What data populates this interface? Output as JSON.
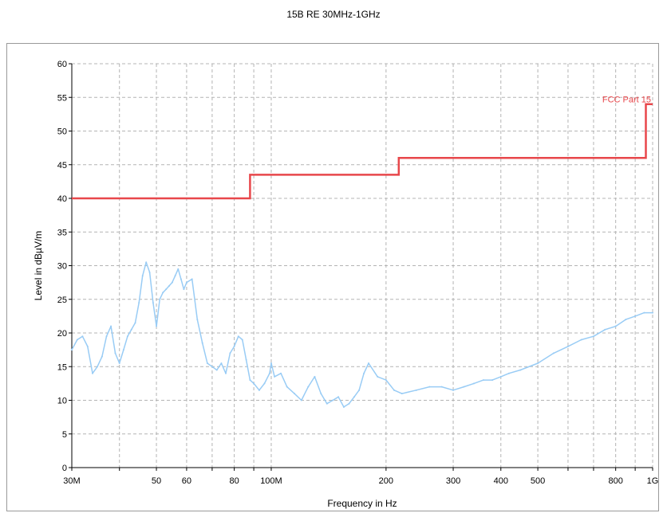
{
  "chart_title": "15B RE 30MHz-1GHz",
  "chart_data": {
    "type": "line",
    "title": "15B RE 30MHz-1GHz",
    "xlabel": "Frequency in Hz",
    "ylabel": "Level in dBµV/m",
    "x_scale": "log",
    "xlim": [
      30000000,
      1000000000
    ],
    "ylim": [
      0,
      60
    ],
    "grid": true,
    "x_ticks": [
      {
        "value": 30000000,
        "label": "30M"
      },
      {
        "value": 50000000,
        "label": "50"
      },
      {
        "value": 60000000,
        "label": "60"
      },
      {
        "value": 80000000,
        "label": "80"
      },
      {
        "value": 100000000,
        "label": "100M"
      },
      {
        "value": 200000000,
        "label": "200"
      },
      {
        "value": 300000000,
        "label": "300"
      },
      {
        "value": 400000000,
        "label": "400"
      },
      {
        "value": 500000000,
        "label": "500"
      },
      {
        "value": 800000000,
        "label": "800"
      },
      {
        "value": 1000000000,
        "label": "1G"
      }
    ],
    "x_grid_values": [
      30000000,
      40000000,
      50000000,
      60000000,
      70000000,
      80000000,
      90000000,
      100000000,
      200000000,
      300000000,
      400000000,
      500000000,
      600000000,
      700000000,
      800000000,
      900000000,
      1000000000
    ],
    "y_ticks": [
      0,
      5,
      10,
      15,
      20,
      25,
      30,
      35,
      40,
      45,
      50,
      55,
      60
    ],
    "series": [
      {
        "name": "FCC Part 15",
        "color": "#e8474b",
        "x": [
          30000000,
          88000000,
          88000000,
          216000000,
          216000000,
          960000000,
          960000000,
          1000000000
        ],
        "y": [
          40.0,
          40.0,
          43.5,
          43.5,
          46.0,
          46.0,
          54.0,
          54.0
        ]
      },
      {
        "color": "#99ccf5",
        "x": [
          30000000,
          31000000,
          32000000,
          33000000,
          34000000,
          35000000,
          36000000,
          37000000,
          38000000,
          39000000,
          40000000,
          41000000,
          42000000,
          43000000,
          44000000,
          45000000,
          46000000,
          47000000,
          48000000,
          49000000,
          50000000,
          51000000,
          52000000,
          53000000,
          54000000,
          55000000,
          56000000,
          57000000,
          58000000,
          59000000,
          60000000,
          62000000,
          64000000,
          66000000,
          68000000,
          70000000,
          72000000,
          74000000,
          76000000,
          78000000,
          80000000,
          82000000,
          84000000,
          86000000,
          88000000,
          90000000,
          93000000,
          96000000,
          99000000,
          100000000,
          102000000,
          106000000,
          110000000,
          115000000,
          120000000,
          125000000,
          130000000,
          135000000,
          140000000,
          145000000,
          150000000,
          155000000,
          160000000,
          165000000,
          170000000,
          175000000,
          180000000,
          190000000,
          200000000,
          210000000,
          220000000,
          240000000,
          260000000,
          280000000,
          300000000,
          320000000,
          340000000,
          360000000,
          380000000,
          400000000,
          420000000,
          450000000,
          500000000,
          550000000,
          600000000,
          650000000,
          700000000,
          750000000,
          800000000,
          850000000,
          900000000,
          950000000,
          1000000000
        ],
        "y": [
          17.5,
          19.0,
          19.5,
          18.0,
          14.0,
          15.0,
          16.5,
          19.5,
          21.0,
          17.0,
          15.5,
          17.5,
          19.5,
          20.5,
          21.5,
          24.5,
          28.5,
          30.5,
          29.0,
          24.5,
          21.0,
          25.0,
          26.0,
          26.5,
          27.0,
          27.5,
          28.5,
          29.5,
          28.0,
          26.5,
          27.5,
          28.0,
          22.0,
          18.5,
          15.5,
          15.0,
          14.5,
          15.5,
          14.0,
          17.0,
          18.0,
          19.5,
          19.0,
          16.0,
          13.0,
          12.5,
          11.5,
          12.5,
          14.0,
          15.5,
          13.5,
          14.0,
          12.0,
          11.0,
          10.0,
          12.0,
          13.5,
          11.0,
          9.5,
          10.0,
          10.5,
          9.0,
          9.5,
          10.5,
          11.5,
          14.0,
          15.5,
          13.5,
          13.0,
          11.5,
          11.0,
          11.5,
          12.0,
          12.0,
          11.5,
          12.0,
          12.5,
          13.0,
          13.0,
          13.5,
          14.0,
          14.5,
          15.5,
          17.0,
          18.0,
          19.0,
          19.5,
          20.5,
          21.0,
          22.0,
          22.5,
          23.0,
          23.0
        ]
      }
    ],
    "annotations": [
      {
        "text": "FCC Part 15",
        "x": 960000000,
        "y": 54.0
      }
    ]
  }
}
